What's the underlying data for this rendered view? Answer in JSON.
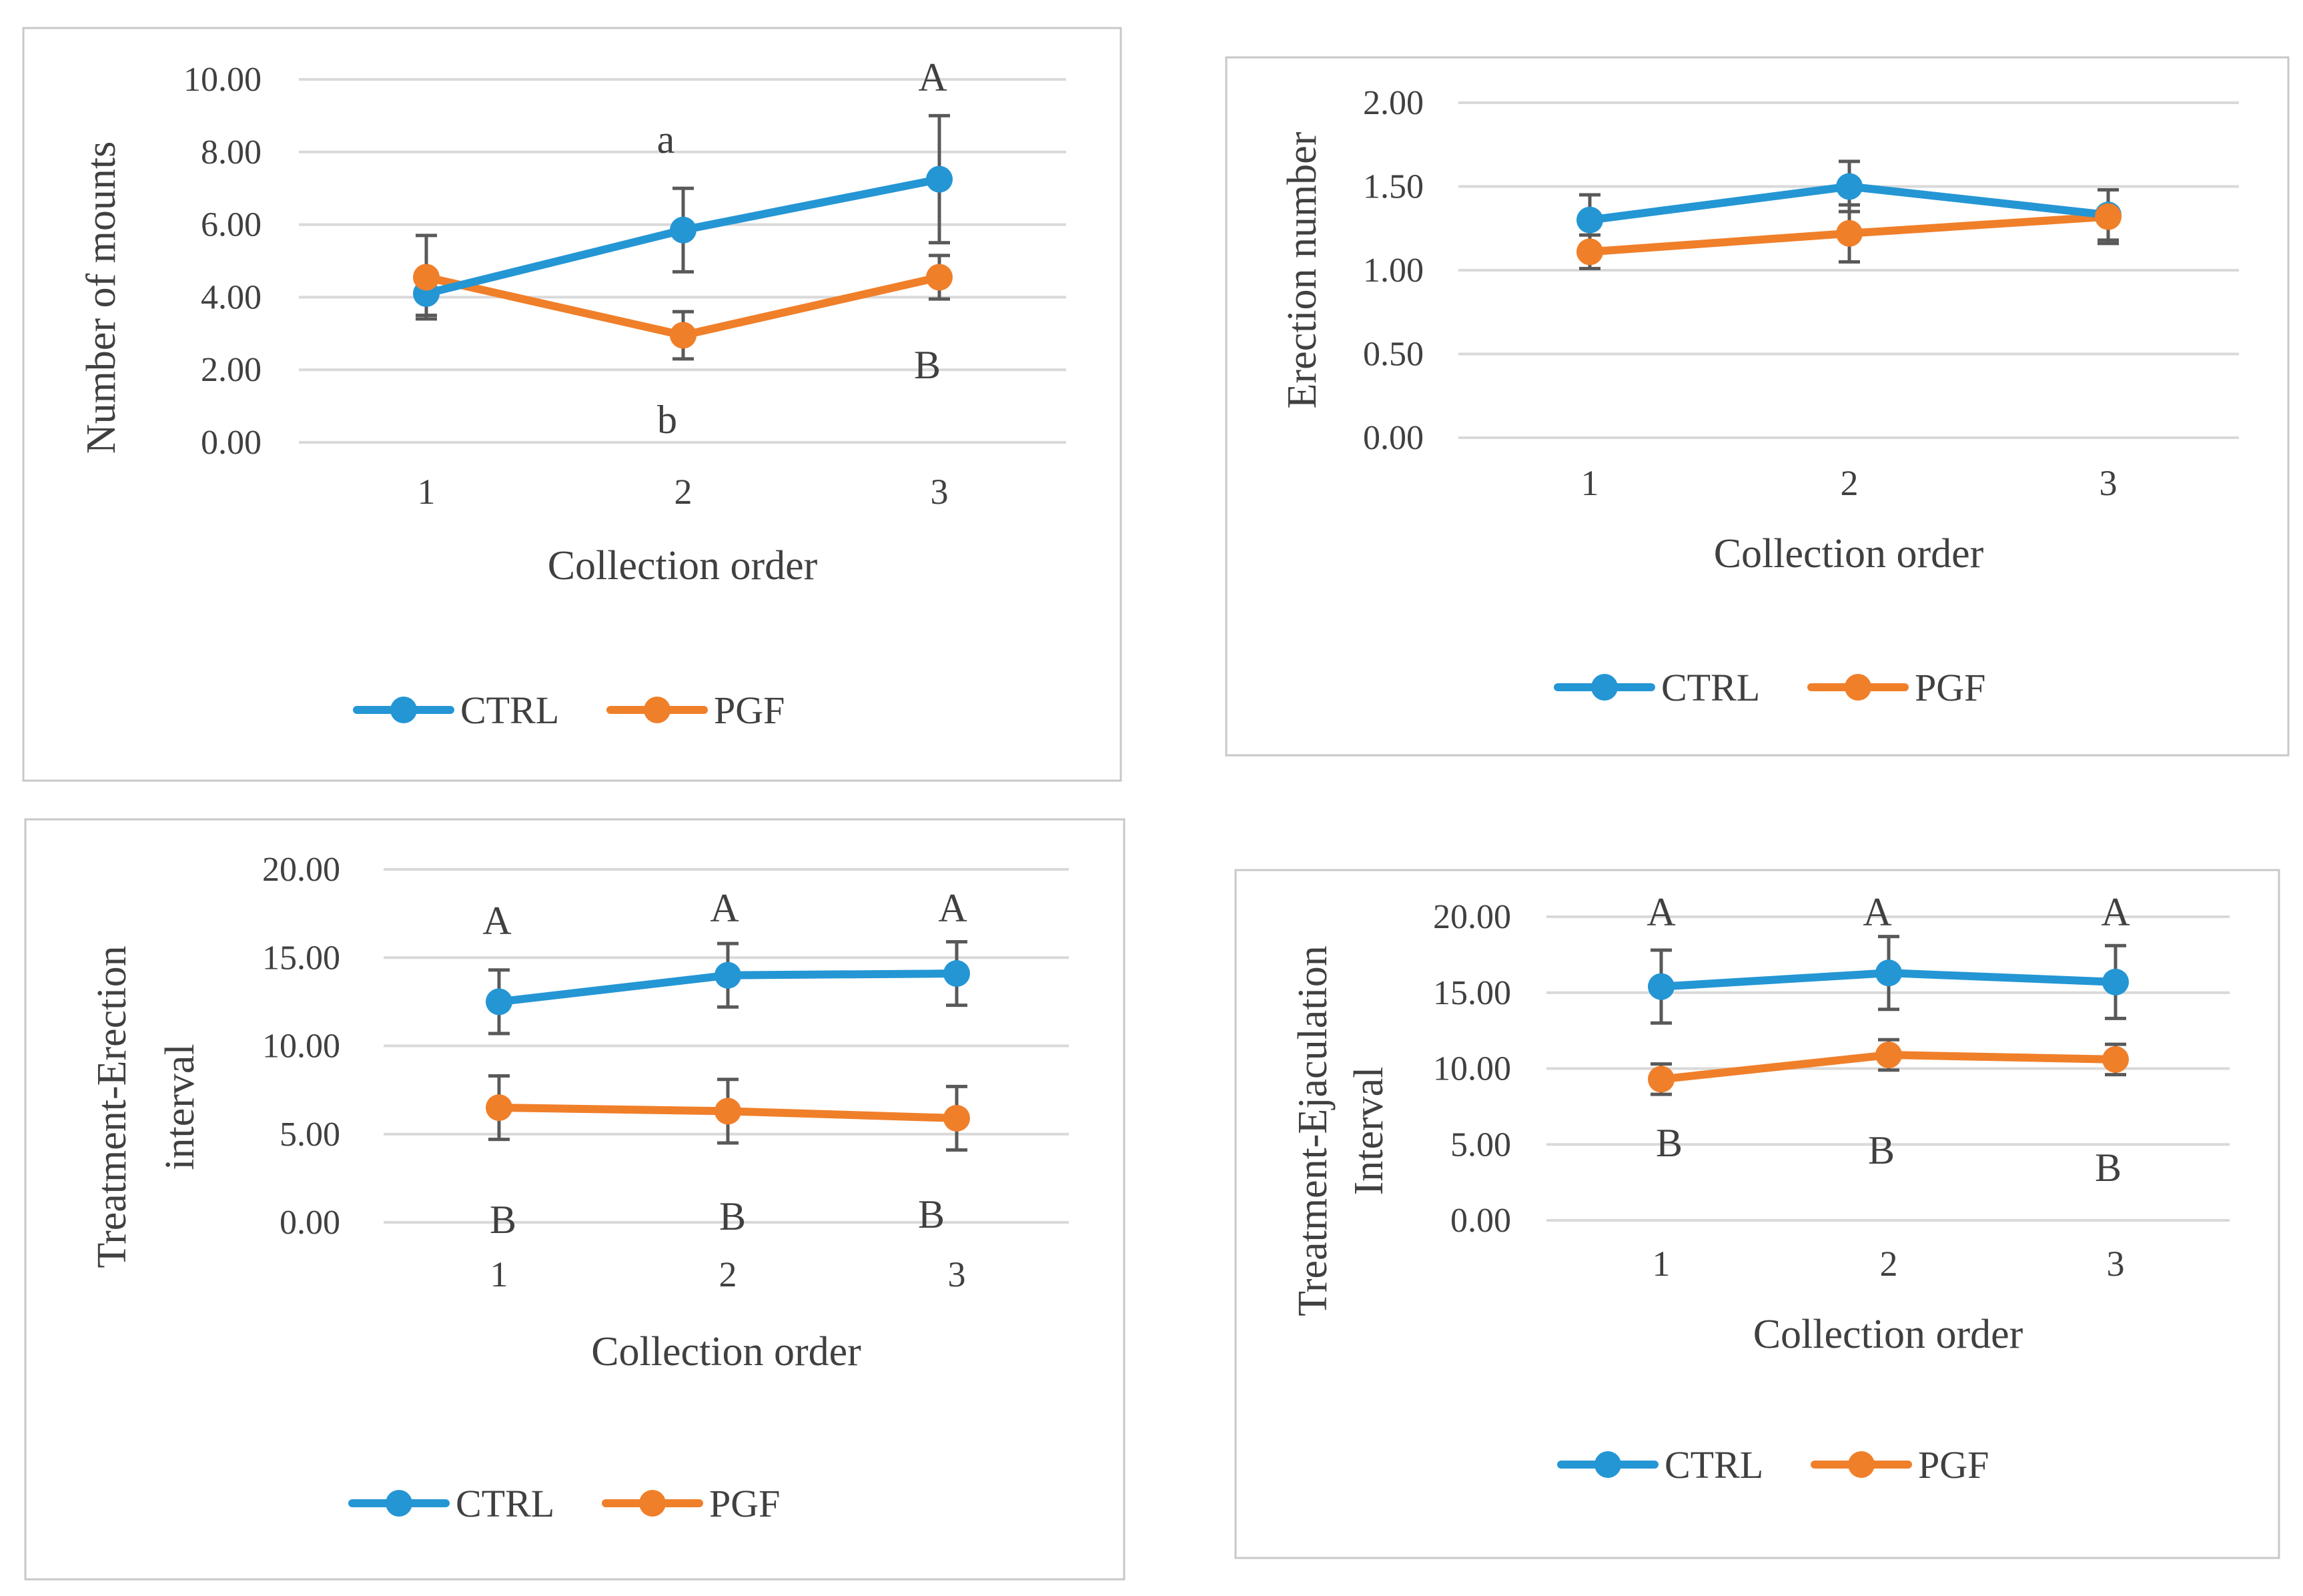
{
  "colors": {
    "ctrl": "#2496d4",
    "pgf": "#f07f2a",
    "grid": "#d9d9d9",
    "text": "#404040",
    "error_bar": "#595959",
    "panel_border": "#c8c8c8"
  },
  "chart_data": [
    {
      "type": "line",
      "ylabel": [
        "Number of mounts"
      ],
      "xlabel": "Collection order",
      "categories": [
        "1",
        "2",
        "3"
      ],
      "ylim": [
        0,
        10
      ],
      "yticks": [
        "0.00",
        "2.00",
        "4.00",
        "6.00",
        "8.00",
        "10.00"
      ],
      "legend_position": "bottom",
      "series": [
        {
          "name": "CTRL",
          "values": [
            4.1,
            5.85,
            7.25
          ],
          "errors": [
            0.6,
            1.15,
            1.75
          ],
          "letters": [
            "",
            "a",
            "A"
          ]
        },
        {
          "name": "PGF",
          "values": [
            4.55,
            2.95,
            4.55
          ],
          "errors": [
            1.15,
            0.65,
            0.6
          ],
          "letters": [
            "",
            "b",
            "B"
          ]
        }
      ]
    },
    {
      "type": "line",
      "ylabel": [
        "Erection number"
      ],
      "xlabel": "Collection order",
      "categories": [
        "1",
        "2",
        "3"
      ],
      "ylim": [
        0,
        2
      ],
      "yticks": [
        "0.00",
        "0.50",
        "1.00",
        "1.50",
        "2.00"
      ],
      "legend_position": "bottom",
      "series": [
        {
          "name": "CTRL",
          "values": [
            1.3,
            1.5,
            1.33
          ],
          "errors": [
            0.15,
            0.15,
            0.15
          ],
          "letters": [
            "",
            "",
            ""
          ]
        },
        {
          "name": "PGF",
          "values": [
            1.11,
            1.22,
            1.32
          ],
          "errors": [
            0.1,
            0.17,
            0.16
          ],
          "letters": [
            "",
            "",
            ""
          ]
        }
      ]
    },
    {
      "type": "line",
      "ylabel": [
        "Treatment-Erection",
        "interval"
      ],
      "xlabel": "Collection order",
      "categories": [
        "1",
        "2",
        "3"
      ],
      "ylim": [
        0,
        20
      ],
      "yticks": [
        "0.00",
        "5.00",
        "10.00",
        "15.00",
        "20.00"
      ],
      "legend_position": "bottom",
      "series": [
        {
          "name": "CTRL",
          "values": [
            12.5,
            14.0,
            14.1
          ],
          "errors": [
            1.8,
            1.8,
            1.8
          ],
          "letters": [
            "A",
            "A",
            "A"
          ]
        },
        {
          "name": "PGF",
          "values": [
            6.5,
            6.3,
            5.9
          ],
          "errors": [
            1.8,
            1.8,
            1.8
          ],
          "letters": [
            "B",
            "B",
            "B"
          ]
        }
      ]
    },
    {
      "type": "line",
      "ylabel": [
        "Treatment-Ejaculation",
        "Interval"
      ],
      "xlabel": "Collection order",
      "categories": [
        "1",
        "2",
        "3"
      ],
      "ylim": [
        0,
        20
      ],
      "yticks": [
        "0.00",
        "5.00",
        "10.00",
        "15.00",
        "20.00"
      ],
      "legend_position": "bottom",
      "series": [
        {
          "name": "CTRL",
          "values": [
            15.4,
            16.3,
            15.7
          ],
          "errors": [
            2.4,
            2.4,
            2.4
          ],
          "letters": [
            "A",
            "A",
            "A"
          ]
        },
        {
          "name": "PGF",
          "values": [
            9.3,
            10.9,
            10.6
          ],
          "errors": [
            1.0,
            1.0,
            1.0
          ],
          "letters": [
            "B",
            "B",
            "B"
          ]
        }
      ]
    }
  ]
}
